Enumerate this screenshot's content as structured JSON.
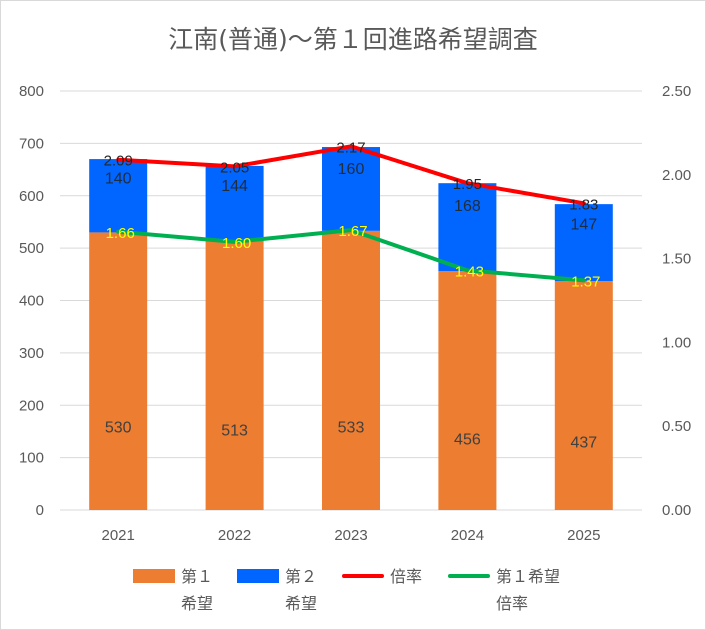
{
  "chart_data": {
    "type": "bar",
    "title": "江南(普通)～第１回進路希望調査",
    "categories": [
      "2021",
      "2022",
      "2023",
      "2024",
      "2025"
    ],
    "stacked": true,
    "series": [
      {
        "name": "第１\n希望",
        "kind": "bar",
        "axis": "left",
        "color": "#ed7d31",
        "values": [
          530,
          513,
          533,
          456,
          437
        ]
      },
      {
        "name": "第２\n希望",
        "kind": "bar",
        "axis": "left",
        "color": "#0066ff",
        "values": [
          140,
          144,
          160,
          168,
          147
        ]
      },
      {
        "name": "倍率",
        "kind": "line",
        "axis": "right",
        "color": "#ff0000",
        "values": [
          2.09,
          2.05,
          2.17,
          1.95,
          1.83
        ],
        "labels": [
          "2.09",
          "2.05",
          "2.17",
          "1.95",
          "1.83"
        ]
      },
      {
        "name": "第１希望\n倍率",
        "kind": "line",
        "axis": "right",
        "color": "#00b050",
        "values": [
          1.66,
          1.6,
          1.67,
          1.43,
          1.37
        ],
        "labels": [
          "1.66",
          "1.60",
          "1.67",
          "1.43",
          "1.37"
        ]
      }
    ],
    "y_left": {
      "range": [
        0,
        800
      ],
      "ticks": [
        "0",
        "100",
        "200",
        "300",
        "400",
        "500",
        "600",
        "700",
        "800"
      ]
    },
    "y_right": {
      "range": [
        0,
        2.5
      ],
      "ticks": [
        "0.00",
        "0.50",
        "1.00",
        "1.50",
        "2.00",
        "2.50"
      ]
    },
    "grid": true,
    "legend_position": "bottom"
  }
}
